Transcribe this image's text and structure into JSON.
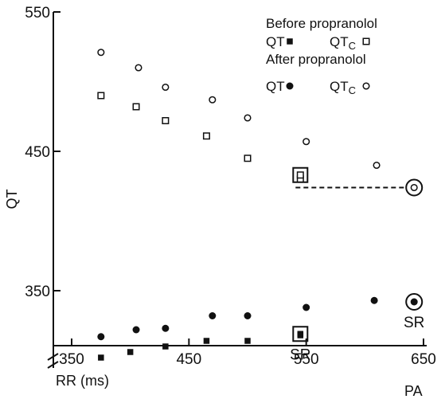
{
  "chart_data": {
    "type": "scatter",
    "title": "",
    "xlabel": "RR (ms)",
    "ylabel": "QT",
    "corner_label": "PA",
    "xlim": [
      350,
      650
    ],
    "ylim": [
      290,
      550
    ],
    "x_ticks": [
      350,
      450,
      550,
      650
    ],
    "y_ticks": [
      350,
      450,
      550
    ],
    "axis_break": true,
    "grid": false,
    "legend": {
      "placement": "top-right",
      "before_title": "Before propranolol",
      "after_title": "After propranolol",
      "qt_label": "QT",
      "qtc_main": "QT",
      "qtc_sub": "C"
    },
    "series": [
      {
        "name": "QT",
        "group": "Before propranolol",
        "marker": "square-filled",
        "x": [
          375,
          400,
          430,
          465,
          500,
          545
        ],
        "y": [
          302,
          306,
          310,
          314,
          314,
          318
        ]
      },
      {
        "name": "QTc",
        "group": "Before propranolol",
        "marker": "square-open",
        "x": [
          375,
          405,
          430,
          465,
          500,
          545
        ],
        "y": [
          490,
          482,
          472,
          461,
          445,
          430
        ]
      },
      {
        "name": "QT",
        "group": "After propranolol",
        "marker": "circle-filled",
        "x": [
          375,
          405,
          430,
          470,
          500,
          550,
          608
        ],
        "y": [
          317,
          322,
          323,
          332,
          332,
          338,
          343
        ]
      },
      {
        "name": "QTc",
        "group": "After propranolol",
        "marker": "circle-open",
        "x": [
          375,
          407,
          430,
          470,
          500,
          550,
          610
        ],
        "y": [
          521,
          510,
          496,
          487,
          474,
          457,
          440
        ]
      }
    ],
    "highlights": [
      {
        "x": 545,
        "y": 433,
        "marker": "square-open",
        "frame": "square"
      },
      {
        "x": 545,
        "y": 319,
        "marker": "square-filled",
        "frame": "square",
        "label": "SR"
      },
      {
        "x": 642,
        "y": 424,
        "marker": "circle-open",
        "frame": "circle"
      },
      {
        "x": 642,
        "y": 342,
        "marker": "circle-filled",
        "frame": "circle",
        "label": "SR"
      }
    ],
    "reference_line": {
      "y": 424,
      "x_from": 545,
      "x_to": 642,
      "style": "dashed"
    }
  }
}
